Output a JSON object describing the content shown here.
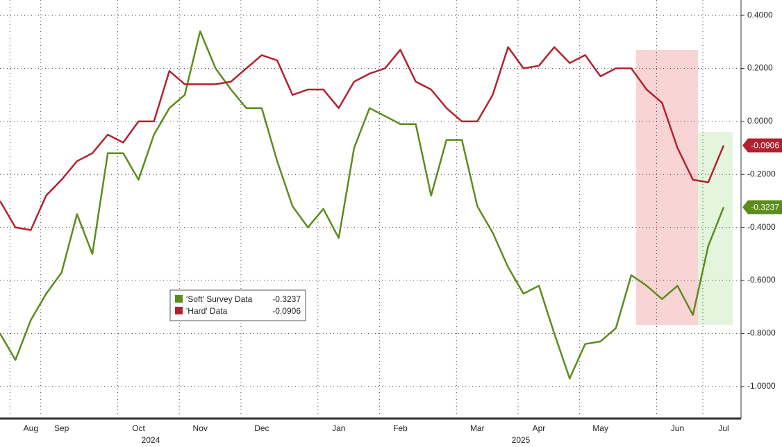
{
  "chart_data": {
    "type": "line",
    "categories": [
      null,
      null,
      "Aug",
      null,
      "Sep",
      null,
      null,
      null,
      null,
      "Oct",
      null,
      null,
      null,
      "Nov",
      null,
      null,
      null,
      "Dec",
      null,
      null,
      null,
      null,
      "Jan",
      null,
      null,
      null,
      "Feb",
      null,
      null,
      null,
      null,
      "Mar",
      null,
      null,
      null,
      "Apr",
      null,
      null,
      null,
      "May",
      null,
      null,
      null,
      null,
      "Jun",
      null,
      null,
      "Jul"
    ],
    "years": [
      "2024",
      "2025"
    ],
    "series": [
      {
        "name": "'Soft' Survey Data",
        "color": "#5b8c1c",
        "values": [
          -0.8,
          -0.9,
          -0.75,
          -0.65,
          -0.57,
          -0.35,
          -0.5,
          -0.12,
          -0.12,
          -0.22,
          -0.05,
          0.05,
          0.1,
          0.34,
          0.2,
          0.12,
          0.05,
          0.05,
          -0.15,
          -0.32,
          -0.4,
          -0.33,
          -0.44,
          -0.1,
          0.05,
          0.02,
          -0.01,
          -0.01,
          -0.28,
          -0.07,
          -0.07,
          -0.32,
          -0.42,
          -0.55,
          -0.65,
          -0.62,
          -0.8,
          -0.97,
          -0.84,
          -0.83,
          -0.78,
          -0.58,
          -0.62,
          -0.67,
          -0.62,
          -0.73,
          -0.47,
          -0.3237
        ]
      },
      {
        "name": "'Hard' Data",
        "color": "#b3212f",
        "values": [
          -0.3,
          -0.4,
          -0.41,
          -0.28,
          -0.22,
          -0.15,
          -0.12,
          -0.05,
          -0.08,
          0.0,
          0.0,
          0.19,
          0.14,
          0.14,
          0.14,
          0.15,
          0.2,
          0.25,
          0.23,
          0.1,
          0.12,
          0.12,
          0.05,
          0.15,
          0.18,
          0.2,
          0.27,
          0.15,
          0.12,
          0.05,
          0.0,
          0.0,
          0.1,
          0.28,
          0.2,
          0.21,
          0.28,
          0.22,
          0.25,
          0.17,
          0.2,
          0.2,
          0.12,
          0.07,
          -0.1,
          -0.22,
          -0.23,
          -0.0906
        ]
      }
    ],
    "ylim": [
      -1.1,
      0.45
    ],
    "yticks": [
      {
        "value": 0.4,
        "label": "0.4000"
      },
      {
        "value": 0.2,
        "label": "0.2000"
      },
      {
        "value": 0,
        "label": "0.0000"
      },
      {
        "value": -0.2,
        "label": "-0.2000"
      },
      {
        "value": -0.4,
        "label": "-0.4000"
      },
      {
        "value": -0.6,
        "label": "-0.6000"
      },
      {
        "value": -0.8,
        "label": "-0.8000"
      },
      {
        "value": -1.0,
        "label": "-1.0000"
      }
    ],
    "grid": true
  }
}
